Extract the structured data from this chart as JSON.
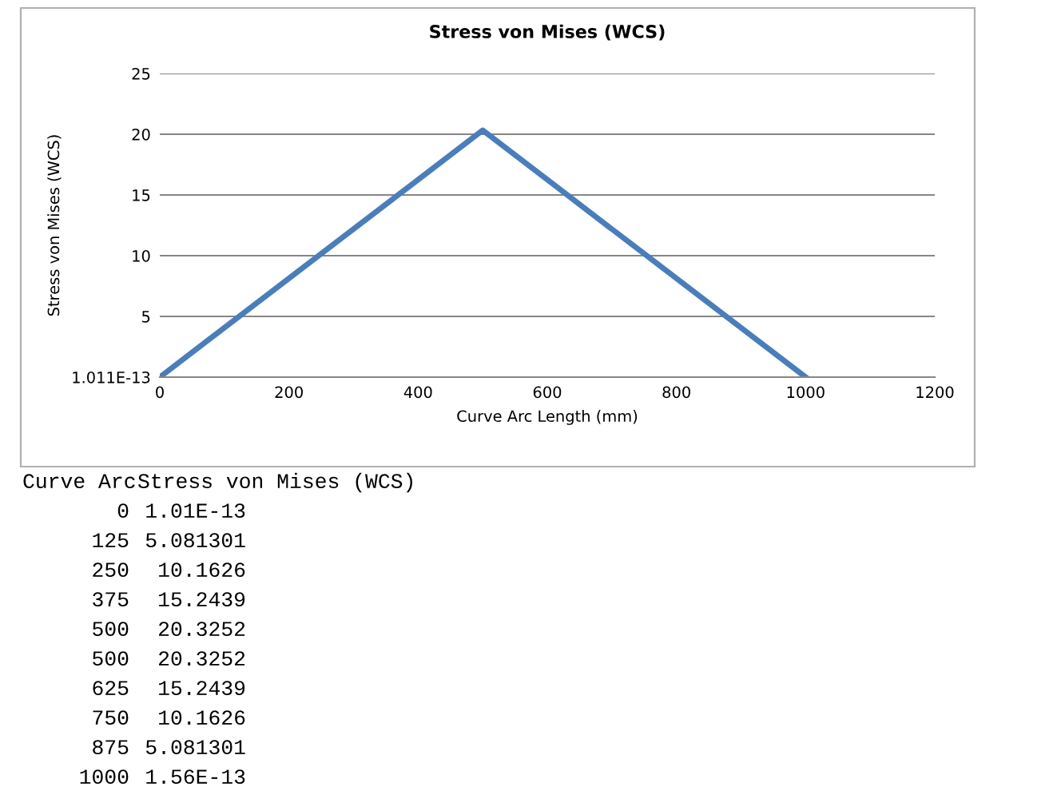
{
  "chart_data": {
    "type": "line",
    "title": "Stress von Mises (WCS)",
    "xlabel": "Curve Arc Length (mm)",
    "ylabel": "Stress von Mises (WCS)",
    "x": [
      0,
      125,
      250,
      375,
      500,
      500,
      625,
      750,
      875,
      1000
    ],
    "series": [
      {
        "color": "#4a7ebb",
        "values": [
          0,
          5.08,
          10.16,
          15.24,
          20.33,
          20.33,
          15.24,
          10.16,
          5.08,
          0
        ]
      }
    ],
    "xlim": [
      0,
      1200
    ],
    "xticks": [
      0,
      200,
      400,
      600,
      800,
      1000,
      1200
    ],
    "ylim": [
      0,
      25
    ],
    "yticks": [
      {
        "value": 0,
        "label": "1.011E-13"
      },
      5,
      10,
      15,
      20,
      25
    ],
    "grid": "y",
    "marker": "none",
    "line_style": "solid",
    "annotations": [
      "Curve Arc",
      "Stress von Mises (WCS)",
      "0",
      "1.01E-13",
      "125",
      "5.081301",
      "250",
      "10.1626",
      "375",
      "15.2439",
      "500",
      "20.3252",
      "500",
      "20.3252",
      "625",
      "15.2439",
      "750",
      "10.1626",
      "875",
      "5.081301",
      "1000",
      "1.56E-13"
    ]
  }
}
